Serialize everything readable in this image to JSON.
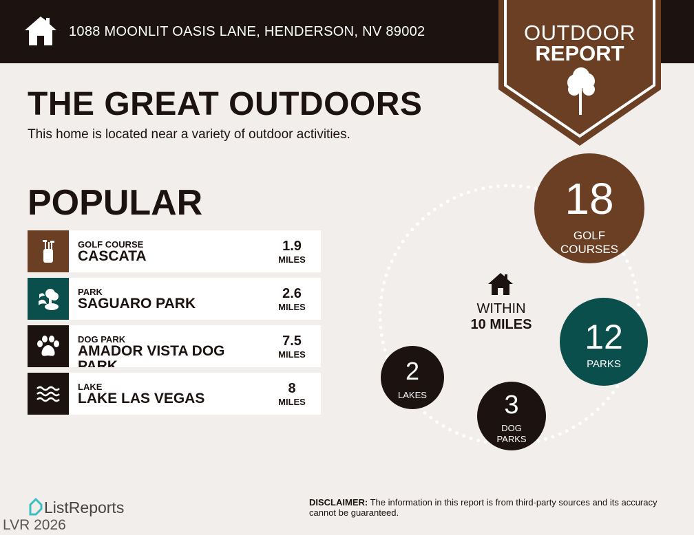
{
  "header": {
    "address": "1088 MOONLIT OASIS LANE, HENDERSON, NV 89002",
    "home_icon": "home-icon"
  },
  "badge": {
    "line1": "OUTDOOR",
    "line2": "REPORT",
    "icon": "tree-icon"
  },
  "intro": {
    "title": "THE GREAT OUTDOORS",
    "subtitle": "This home is located near a variety of outdoor activities."
  },
  "popular": {
    "heading": "POPULAR",
    "items": [
      {
        "category": "GOLF COURSE",
        "name": "CASCATA",
        "distance": "1.9",
        "unit": "MILES",
        "icon": "golf-bag-icon",
        "color": "#6b3f24"
      },
      {
        "category": "PARK",
        "name": "SAGUARO PARK",
        "distance": "2.6",
        "unit": "MILES",
        "icon": "park-tree-icon",
        "color": "#0b4f4c"
      },
      {
        "category": "DOG PARK",
        "name": "AMADOR VISTA DOG PARK",
        "distance": "7.5",
        "unit": "MILES",
        "icon": "paw-icon",
        "color": "#1c1210"
      },
      {
        "category": "LAKE",
        "name": "LAKE LAS VEGAS",
        "distance": "8",
        "unit": "MILES",
        "icon": "waves-icon",
        "color": "#1c1210"
      }
    ]
  },
  "summary": {
    "within1": "WITHIN",
    "within2": "10 MILES",
    "golf": {
      "count": "18",
      "label1": "GOLF",
      "label2": "COURSES"
    },
    "parks": {
      "count": "12",
      "label": "PARKS"
    },
    "dog": {
      "count": "3",
      "label1": "DOG",
      "label2": "PARKS"
    },
    "lakes": {
      "count": "2",
      "label": "LAKES"
    }
  },
  "footer": {
    "logo": "ListReports",
    "disclaimer_label": "DISCLAIMER:",
    "disclaimer": " The information in this report is from third-party sources and its accuracy cannot be guaranteed.",
    "watermark": "LVR 2026"
  },
  "colors": {
    "brown": "#6b3f24",
    "teal": "#0b4f4c",
    "dark": "#1c1210",
    "background": "#f1eeeb"
  }
}
